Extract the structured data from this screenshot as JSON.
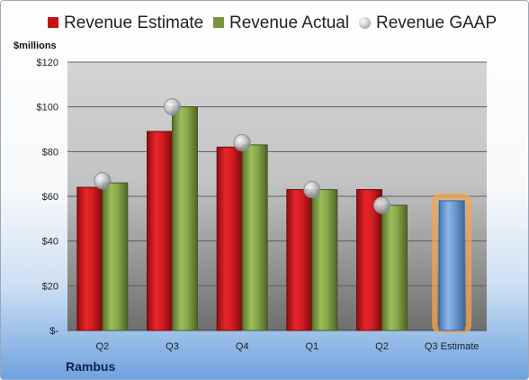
{
  "legend": {
    "estimate": "Revenue Estimate",
    "actual": "Revenue Actual",
    "gaap": "Revenue GAAP"
  },
  "company": "Rambus",
  "colors": {
    "estimate": "#c0161b",
    "actual": "#77953d",
    "gaap": "#b9bfc7",
    "estimate_future": "#6e9bd3",
    "highlight": "#f5a64a"
  },
  "chart_data": {
    "type": "bar",
    "ylabel": "$millions",
    "ylim": [
      0,
      120
    ],
    "yticks": [
      0,
      20,
      40,
      60,
      80,
      100,
      120
    ],
    "ytick_labels": [
      "$-",
      "$20",
      "$40",
      "$60",
      "$80",
      "$100",
      "$120"
    ],
    "categories": [
      "Q2",
      "Q3",
      "Q4",
      "Q1",
      "Q2",
      "Q3 Estimate"
    ],
    "series": [
      {
        "name": "Revenue Estimate",
        "values": [
          64,
          89,
          82,
          63,
          63,
          null
        ]
      },
      {
        "name": "Revenue Actual",
        "values": [
          66,
          100,
          83,
          63,
          56,
          null
        ]
      },
      {
        "name": "Revenue GAAP",
        "values": [
          67,
          100,
          84,
          63,
          56,
          null
        ]
      }
    ],
    "forecast": {
      "category": "Q3 Estimate",
      "value": 58
    },
    "grid": true,
    "legend_position": "top"
  }
}
